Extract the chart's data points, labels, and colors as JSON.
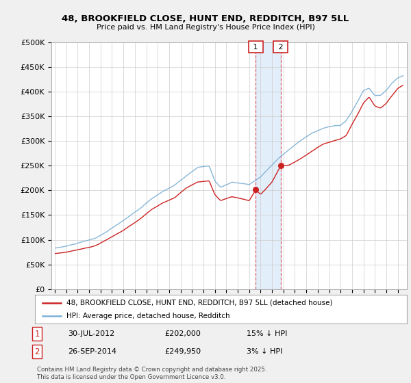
{
  "title_line1": "48, BROOKFIELD CLOSE, HUNT END, REDDITCH, B97 5LL",
  "title_line2": "Price paid vs. HM Land Registry's House Price Index (HPI)",
  "ylim": [
    0,
    500000
  ],
  "yticks": [
    0,
    50000,
    100000,
    150000,
    200000,
    250000,
    300000,
    350000,
    400000,
    450000,
    500000
  ],
  "ytick_labels": [
    "£0",
    "£50K",
    "£100K",
    "£150K",
    "£200K",
    "£250K",
    "£300K",
    "£350K",
    "£400K",
    "£450K",
    "£500K"
  ],
  "hpi_color": "#7bafd4",
  "price_color": "#cc2222",
  "sale1_x": 2012.583,
  "sale1_price": 202000,
  "sale1_date_label": "30-JUL-2012",
  "sale1_price_label": "£202,000",
  "sale1_hpi_label": "15% ↓ HPI",
  "sale2_x": 2014.75,
  "sale2_price": 249950,
  "sale2_date_label": "26-SEP-2014",
  "sale2_price_label": "£249,950",
  "sale2_hpi_label": "3% ↓ HPI",
  "legend_line1": "48, BROOKFIELD CLOSE, HUNT END, REDDITCH, B97 5LL (detached house)",
  "legend_line2": "HPI: Average price, detached house, Redditch",
  "footnote": "Contains HM Land Registry data © Crown copyright and database right 2025.\nThis data is licensed under the Open Government Licence v3.0.",
  "bg_color": "#f0f0f0",
  "plot_bg_color": "#ffffff",
  "shade_color": "#d0e4f7"
}
